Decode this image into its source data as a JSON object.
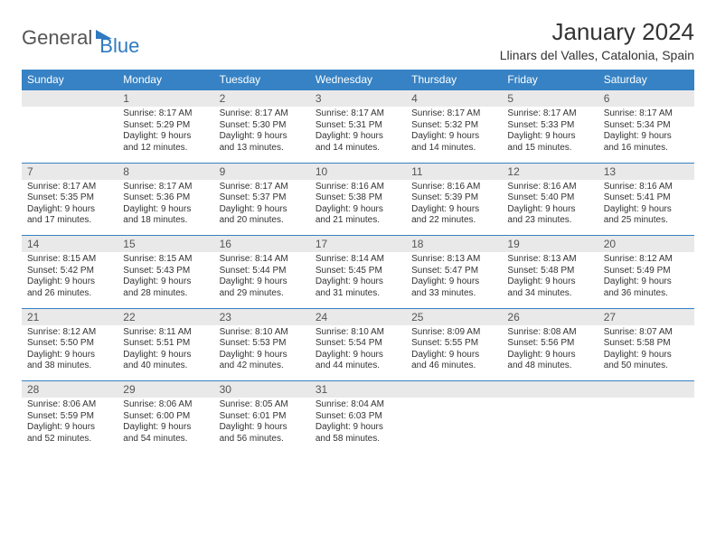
{
  "logo": {
    "general": "General",
    "blue": "Blue"
  },
  "title": "January 2024",
  "location": "Llinars del Valles, Catalonia, Spain",
  "colors": {
    "header_bg": "#3682c4",
    "header_text": "#ffffff",
    "daynum_bg": "#e9e9e9",
    "border": "#3682c4",
    "text": "#333333",
    "logo_gray": "#555555",
    "logo_blue": "#2f7ac0",
    "background": "#ffffff"
  },
  "typography": {
    "title_fontsize": 26,
    "location_fontsize": 14,
    "weekday_fontsize": 12,
    "daynum_fontsize": 12,
    "detail_fontsize": 10
  },
  "weekdays": [
    "Sunday",
    "Monday",
    "Tuesday",
    "Wednesday",
    "Thursday",
    "Friday",
    "Saturday"
  ],
  "weeks": [
    {
      "nums": [
        "",
        "1",
        "2",
        "3",
        "4",
        "5",
        "6"
      ],
      "details": [
        "",
        "Sunrise: 8:17 AM\nSunset: 5:29 PM\nDaylight: 9 hours and 12 minutes.",
        "Sunrise: 8:17 AM\nSunset: 5:30 PM\nDaylight: 9 hours and 13 minutes.",
        "Sunrise: 8:17 AM\nSunset: 5:31 PM\nDaylight: 9 hours and 14 minutes.",
        "Sunrise: 8:17 AM\nSunset: 5:32 PM\nDaylight: 9 hours and 14 minutes.",
        "Sunrise: 8:17 AM\nSunset: 5:33 PM\nDaylight: 9 hours and 15 minutes.",
        "Sunrise: 8:17 AM\nSunset: 5:34 PM\nDaylight: 9 hours and 16 minutes."
      ]
    },
    {
      "nums": [
        "7",
        "8",
        "9",
        "10",
        "11",
        "12",
        "13"
      ],
      "details": [
        "Sunrise: 8:17 AM\nSunset: 5:35 PM\nDaylight: 9 hours and 17 minutes.",
        "Sunrise: 8:17 AM\nSunset: 5:36 PM\nDaylight: 9 hours and 18 minutes.",
        "Sunrise: 8:17 AM\nSunset: 5:37 PM\nDaylight: 9 hours and 20 minutes.",
        "Sunrise: 8:16 AM\nSunset: 5:38 PM\nDaylight: 9 hours and 21 minutes.",
        "Sunrise: 8:16 AM\nSunset: 5:39 PM\nDaylight: 9 hours and 22 minutes.",
        "Sunrise: 8:16 AM\nSunset: 5:40 PM\nDaylight: 9 hours and 23 minutes.",
        "Sunrise: 8:16 AM\nSunset: 5:41 PM\nDaylight: 9 hours and 25 minutes."
      ]
    },
    {
      "nums": [
        "14",
        "15",
        "16",
        "17",
        "18",
        "19",
        "20"
      ],
      "details": [
        "Sunrise: 8:15 AM\nSunset: 5:42 PM\nDaylight: 9 hours and 26 minutes.",
        "Sunrise: 8:15 AM\nSunset: 5:43 PM\nDaylight: 9 hours and 28 minutes.",
        "Sunrise: 8:14 AM\nSunset: 5:44 PM\nDaylight: 9 hours and 29 minutes.",
        "Sunrise: 8:14 AM\nSunset: 5:45 PM\nDaylight: 9 hours and 31 minutes.",
        "Sunrise: 8:13 AM\nSunset: 5:47 PM\nDaylight: 9 hours and 33 minutes.",
        "Sunrise: 8:13 AM\nSunset: 5:48 PM\nDaylight: 9 hours and 34 minutes.",
        "Sunrise: 8:12 AM\nSunset: 5:49 PM\nDaylight: 9 hours and 36 minutes."
      ]
    },
    {
      "nums": [
        "21",
        "22",
        "23",
        "24",
        "25",
        "26",
        "27"
      ],
      "details": [
        "Sunrise: 8:12 AM\nSunset: 5:50 PM\nDaylight: 9 hours and 38 minutes.",
        "Sunrise: 8:11 AM\nSunset: 5:51 PM\nDaylight: 9 hours and 40 minutes.",
        "Sunrise: 8:10 AM\nSunset: 5:53 PM\nDaylight: 9 hours and 42 minutes.",
        "Sunrise: 8:10 AM\nSunset: 5:54 PM\nDaylight: 9 hours and 44 minutes.",
        "Sunrise: 8:09 AM\nSunset: 5:55 PM\nDaylight: 9 hours and 46 minutes.",
        "Sunrise: 8:08 AM\nSunset: 5:56 PM\nDaylight: 9 hours and 48 minutes.",
        "Sunrise: 8:07 AM\nSunset: 5:58 PM\nDaylight: 9 hours and 50 minutes."
      ]
    },
    {
      "nums": [
        "28",
        "29",
        "30",
        "31",
        "",
        "",
        ""
      ],
      "details": [
        "Sunrise: 8:06 AM\nSunset: 5:59 PM\nDaylight: 9 hours and 52 minutes.",
        "Sunrise: 8:06 AM\nSunset: 6:00 PM\nDaylight: 9 hours and 54 minutes.",
        "Sunrise: 8:05 AM\nSunset: 6:01 PM\nDaylight: 9 hours and 56 minutes.",
        "Sunrise: 8:04 AM\nSunset: 6:03 PM\nDaylight: 9 hours and 58 minutes.",
        "",
        "",
        ""
      ]
    }
  ]
}
